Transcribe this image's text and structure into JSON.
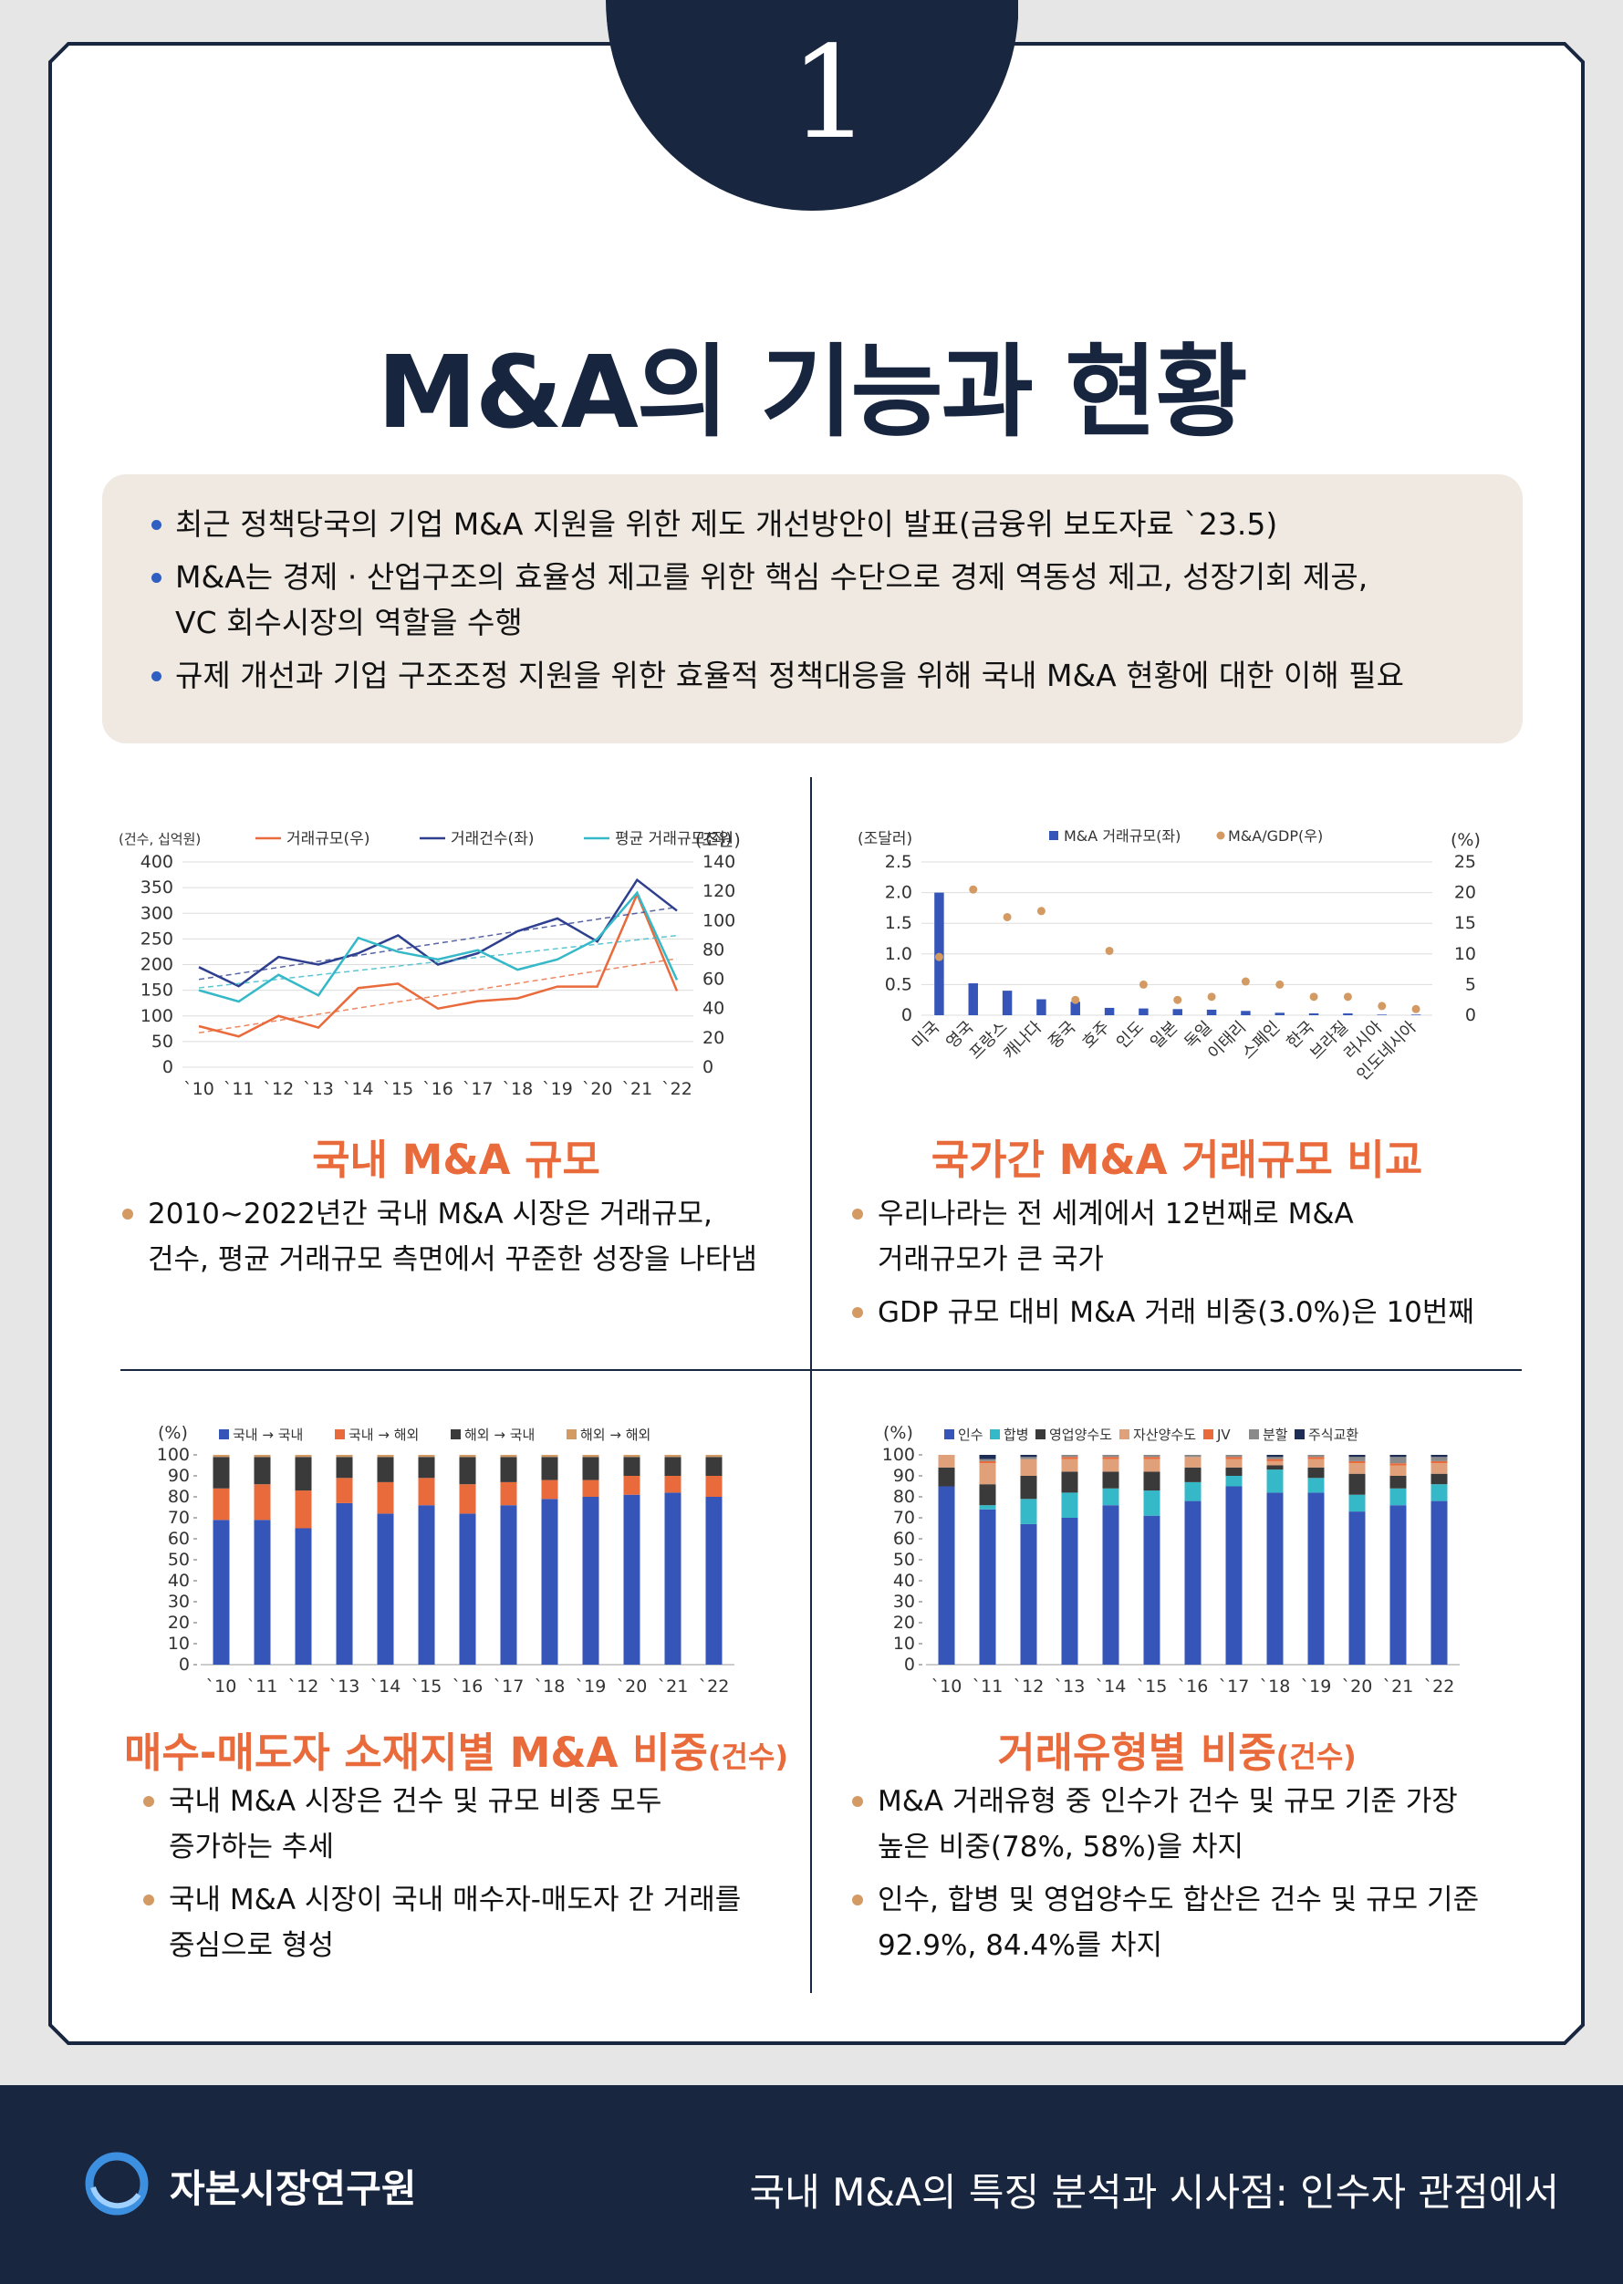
{
  "badge_number": "1",
  "page_title": "M&A의 기능과 현황",
  "summary": [
    "최근 정책당국의 기업 M&A 지원을 위한 제도 개선방안이 발표(금융위 보도자료 `23.5)",
    "M&A는 경제 · 산업구조의 효율성 제고를 위한 핵심 수단으로 경제 역동성 제고, 성장기회 제공,",
    "VC 회수시장의 역할을 수행",
    "규제 개선과 기업 구조조정 지원을 위한 효율적 정책대응을 위해 국내 M&A 현황에 대한 이해 필요"
  ],
  "sections": {
    "domestic": {
      "title": "국내 M&A 규모",
      "bullets": [
        "2010~2022년간 국내 M&A 시장은 거래규모,",
        "건수, 평균 거래규모 측면에서 꾸준한 성장을 나타냄"
      ]
    },
    "country": {
      "title": "국가간 M&A 거래규모 비교",
      "bullets": [
        "우리나라는 전 세계에서 12번째로 M&A",
        "거래규모가 큰 국가",
        "GDP 규모 대비 M&A 거래 비중(3.0%)은 10번째"
      ]
    },
    "location": {
      "title": "매수-매도자 소재지별 M&A 비중",
      "title_suffix": "(건수)",
      "bullets": [
        "국내 M&A 시장은 건수 및 규모 비중 모두",
        "증가하는 추세",
        "국내 M&A 시장이 국내 매수자-매도자 간 거래를",
        "중심으로 형성"
      ]
    },
    "type": {
      "title": "거래유형별 비중",
      "title_suffix": "(건수)",
      "bullets": [
        "M&A 거래유형 중 인수가 건수 및 규모 기준 가장",
        "높은 비중(78%, 58%)을 차지",
        "인수, 합병 및 영업양수도 합산은 건수 및 규모 기준",
        "92.9%, 84.4%를 차지"
      ]
    }
  },
  "footer": {
    "org": "자본시장연구원",
    "report_title": "국내 M&A의 특징 분석과 시사점: 인수자 관점에서"
  },
  "colors": {
    "navy": "#18263f",
    "orange": "#e96a3b",
    "blue": "#3556b8"
  },
  "chart_data": [
    {
      "type": "line",
      "categories": [
        "`10",
        "`11",
        "`12",
        "`13",
        "`14",
        "`15",
        "`16",
        "`17",
        "`18",
        "`19",
        "`20",
        "`21",
        "`22"
      ],
      "left_unit": "(건수, 십억원)",
      "right_unit": "(조원)",
      "left_ylim": [
        0,
        400
      ],
      "right_ylim": [
        0,
        140
      ],
      "left_ticks": [
        "0",
        "50",
        "100",
        "150",
        "200",
        "250",
        "300",
        "350",
        "400"
      ],
      "right_ticks": [
        "0",
        "20",
        "40",
        "60",
        "80",
        "100",
        "120",
        "140"
      ],
      "series": [
        {
          "name": "거래규모(우)",
          "axis": "right",
          "color": "#e96a3b",
          "values": [
            28,
            21,
            35,
            27,
            54,
            57,
            40,
            45,
            47,
            55,
            55,
            118,
            52
          ]
        },
        {
          "name": "거래건수(좌)",
          "axis": "left",
          "color": "#2f3f8f",
          "values": [
            195,
            158,
            215,
            200,
            222,
            257,
            200,
            222,
            265,
            290,
            245,
            365,
            305
          ]
        },
        {
          "name": "평균 거래규모(좌)",
          "axis": "left",
          "color": "#35b8c8",
          "values": [
            150,
            128,
            180,
            140,
            252,
            225,
            210,
            228,
            190,
            210,
            250,
            340,
            170
          ]
        }
      ]
    },
    {
      "type": "bar",
      "categories": [
        "미국",
        "영국",
        "프랑스",
        "캐나다",
        "중국",
        "호주",
        "인도",
        "일본",
        "독일",
        "이태리",
        "스페인",
        "한국",
        "브라질",
        "러시아",
        "인도네시아"
      ],
      "left_unit": "(조달러)",
      "right_unit": "(%)",
      "left_ylim": [
        0,
        2.5
      ],
      "right_ylim": [
        0,
        25
      ],
      "left_ticks": [
        "0",
        "0.5",
        "1.0",
        "1.5",
        "2.0",
        "2.5"
      ],
      "right_ticks": [
        "0",
        "5",
        "10",
        "15",
        "20",
        "25"
      ],
      "series": [
        {
          "name": "M&A 거래규모(좌)",
          "kind": "bar",
          "color": "#3556b8",
          "values": [
            2.0,
            0.52,
            0.4,
            0.26,
            0.22,
            0.12,
            0.11,
            0.1,
            0.09,
            0.07,
            0.04,
            0.03,
            0.03,
            0.01,
            0.01
          ]
        },
        {
          "name": "M&A/GDP(우)",
          "kind": "dot",
          "color": "#d49a64",
          "values": [
            9.5,
            20.5,
            16,
            17,
            2.5,
            10.5,
            5,
            2.5,
            3,
            5.5,
            5,
            3,
            3,
            1.5,
            1
          ]
        }
      ]
    },
    {
      "type": "bar",
      "stacked": true,
      "categories": [
        "`10",
        "`11",
        "`12",
        "`13",
        "`14",
        "`15",
        "`16",
        "`17",
        "`18",
        "`19",
        "`20",
        "`21",
        "`22"
      ],
      "unit": "(%)",
      "ylim": [
        0,
        100
      ],
      "ticks": [
        "0",
        "10",
        "20",
        "30",
        "40",
        "50",
        "60",
        "70",
        "80",
        "90",
        "100"
      ],
      "series": [
        {
          "name": "국내 → 국내",
          "color": "#3556b8",
          "values": [
            69,
            69,
            65,
            77,
            72,
            76,
            72,
            76,
            79,
            80,
            81,
            82,
            80
          ]
        },
        {
          "name": "국내 → 해외",
          "color": "#e96a3b",
          "values": [
            15,
            17,
            18,
            12,
            15,
            13,
            14,
            11,
            9,
            8,
            9,
            8,
            10
          ]
        },
        {
          "name": "해외 → 국내",
          "color": "#3a3a3a",
          "values": [
            15,
            13,
            16,
            10,
            12,
            10,
            13,
            12,
            11,
            11,
            9,
            9,
            9
          ]
        },
        {
          "name": "해외 → 해외",
          "color": "#d49a64",
          "values": [
            1,
            1,
            1,
            1,
            1,
            1,
            1,
            1,
            1,
            1,
            1,
            1,
            1
          ]
        }
      ]
    },
    {
      "type": "bar",
      "stacked": true,
      "categories": [
        "`10",
        "`11",
        "`12",
        "`13",
        "`14",
        "`15",
        "`16",
        "`17",
        "`18",
        "`19",
        "`20",
        "`21",
        "`22"
      ],
      "unit": "(%)",
      "ylim": [
        0,
        100
      ],
      "ticks": [
        "0",
        "10",
        "20",
        "30",
        "40",
        "50",
        "60",
        "70",
        "80",
        "90",
        "100"
      ],
      "series": [
        {
          "name": "인수",
          "color": "#3556b8",
          "values": [
            85,
            74,
            67,
            70,
            76,
            71,
            78,
            85,
            82,
            82,
            73,
            76,
            78
          ]
        },
        {
          "name": "합병",
          "color": "#35b8c8",
          "values": [
            0,
            2,
            12,
            12,
            8,
            12,
            9,
            5,
            11,
            7,
            8,
            8,
            8
          ]
        },
        {
          "name": "영업양수도",
          "color": "#3a3a3a",
          "values": [
            9,
            10,
            11,
            10,
            8,
            9,
            7,
            4,
            2,
            5,
            10,
            6,
            5
          ]
        },
        {
          "name": "자산양수도",
          "color": "#e0a07a",
          "values": [
            6,
            10,
            8,
            6,
            6,
            6,
            5,
            4,
            2,
            4,
            5,
            5,
            5
          ]
        },
        {
          "name": "JV",
          "color": "#e96a3b",
          "values": [
            0,
            1,
            0,
            1,
            1,
            1,
            0,
            1,
            1,
            1,
            1,
            1,
            1
          ]
        },
        {
          "name": "분할",
          "color": "#8a8a8a",
          "values": [
            0,
            1,
            1,
            1,
            1,
            1,
            1,
            1,
            1,
            1,
            2,
            3,
            2
          ]
        },
        {
          "name": "주식교환",
          "color": "#1e2d55",
          "values": [
            0,
            2,
            1,
            0,
            0,
            0,
            0,
            0,
            1,
            0,
            1,
            1,
            1
          ]
        }
      ]
    }
  ]
}
